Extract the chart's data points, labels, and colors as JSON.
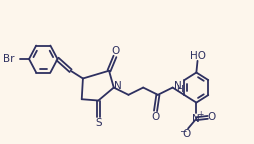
{
  "background_color": "#fdf6ec",
  "line_color": "#2e3060",
  "line_width": 1.3,
  "font_size": 7.5,
  "figsize": [
    2.54,
    1.44
  ],
  "dpi": 100,
  "xlim": [
    0,
    10.5
  ],
  "ylim": [
    0,
    5.5
  ]
}
